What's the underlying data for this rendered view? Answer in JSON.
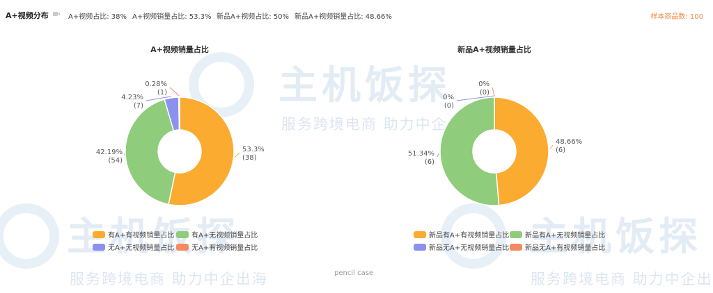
{
  "header": {
    "title": "A+视频分布",
    "stats": [
      "A+视频占比: 38%",
      "A+视频销量占比: 53.3%",
      "新品A+视频占比: 50%",
      "新品A+视频销量占比: 48.66%"
    ],
    "sample": "样本商品数: 100"
  },
  "watermark": {
    "brand": "主机饭探",
    "slogan": "服务跨境电商 助力中企出海"
  },
  "footer_label": "pencil case",
  "colors": {
    "orange": "#fbab2f",
    "green": "#8fcc7b",
    "blue": "#8c91f0",
    "red": "#f5895f",
    "accent": "#f08a3c"
  },
  "chart_data": [
    {
      "type": "pie",
      "title": "A+视频销量占比",
      "donut": true,
      "legend_position": "bottom",
      "slices": [
        {
          "name": "有A+有视频销量占比",
          "value": 53.3,
          "count": 38,
          "label": "53.3%",
          "count_label": "(38)",
          "color": "#fbab2f"
        },
        {
          "name": "有A+无视频销量占比",
          "value": 42.19,
          "count": 54,
          "label": "42.19%",
          "count_label": "(54)",
          "color": "#8fcc7b"
        },
        {
          "name": "无A+无视频销量占比",
          "value": 4.23,
          "count": 7,
          "label": "4.23%",
          "count_label": "(7)",
          "color": "#8c91f0"
        },
        {
          "name": "无A+有视频销量占比",
          "value": 0.28,
          "count": 1,
          "label": "0.28%",
          "count_label": "(1)",
          "color": "#f5895f"
        }
      ]
    },
    {
      "type": "pie",
      "title": "新品A+视频销量占比",
      "donut": true,
      "legend_position": "bottom",
      "slices": [
        {
          "name": "新品有A+有视频销量占比",
          "value": 48.66,
          "count": 6,
          "label": "48.66%",
          "count_label": "(6)",
          "color": "#fbab2f"
        },
        {
          "name": "新品有A+无视频销量占比",
          "value": 51.34,
          "count": 6,
          "label": "51.34%",
          "count_label": "(6)",
          "color": "#8fcc7b"
        },
        {
          "name": "新品无A+无视频销量占比",
          "value": 0,
          "count": 0,
          "label": "0%",
          "count_label": "(0)",
          "color": "#8c91f0"
        },
        {
          "name": "新品无A+有视频销量占比",
          "value": 0,
          "count": 0,
          "label": "0%",
          "count_label": "(0)",
          "color": "#f5895f"
        }
      ]
    }
  ]
}
